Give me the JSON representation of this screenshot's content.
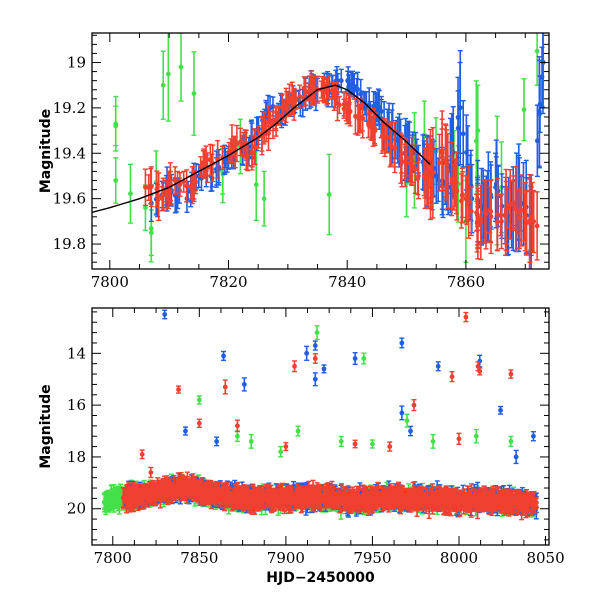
{
  "chart_data": [
    {
      "type": "scatter",
      "panel": "top",
      "xlabel": "",
      "ylabel": "Magnitude",
      "xlim": [
        7797,
        7874
      ],
      "ylim": [
        19.91,
        18.87
      ],
      "y_inverted": true,
      "xticks": [
        7800,
        7820,
        7840,
        7860
      ],
      "yticks": [
        19,
        19.2,
        19.4,
        19.6,
        19.8
      ],
      "ytick_labels": [
        "19",
        "19.2",
        "19.4",
        "19.6",
        "19.8"
      ],
      "error_bars": true,
      "colors": {
        "blue": "#1f5fe0",
        "green": "#44e04a",
        "red": "#f04030",
        "model": "#000000"
      },
      "model_curve": {
        "x": [
          7797,
          7800,
          7805,
          7810,
          7815,
          7820,
          7825,
          7828,
          7831,
          7835,
          7838,
          7840,
          7843,
          7846,
          7850,
          7854
        ],
        "y": [
          19.66,
          19.64,
          19.6,
          19.55,
          19.48,
          19.41,
          19.33,
          19.27,
          19.2,
          19.12,
          19.1,
          19.12,
          19.18,
          19.26,
          19.35,
          19.45
        ]
      },
      "series": [
        {
          "color": "blue",
          "points": [
            [
              7807,
              19.62,
              0.08
            ],
            [
              7810,
              19.55,
              0.07
            ],
            [
              7813,
              19.6,
              0.06
            ],
            [
              7815,
              19.5,
              0.05
            ],
            [
              7818,
              19.48,
              0.06
            ],
            [
              7820,
              19.42,
              0.05
            ],
            [
              7823,
              19.38,
              0.05
            ],
            [
              7825,
              19.3,
              0.06
            ],
            [
              7827,
              19.2,
              0.05
            ],
            [
              7829,
              19.22,
              0.05
            ],
            [
              7831,
              19.18,
              0.04
            ],
            [
              7833,
              19.15,
              0.06
            ],
            [
              7835,
              19.12,
              0.05
            ],
            [
              7837,
              19.1,
              0.05
            ],
            [
              7839,
              19.08,
              0.05
            ],
            [
              7841,
              19.1,
              0.05
            ],
            [
              7843,
              19.18,
              0.05
            ],
            [
              7845,
              19.2,
              0.06
            ],
            [
              7847,
              19.3,
              0.08
            ],
            [
              7849,
              19.35,
              0.1
            ],
            [
              7851,
              19.4,
              0.08
            ],
            [
              7853,
              19.45,
              0.09
            ],
            [
              7855,
              19.5,
              0.12
            ],
            [
              7857,
              19.55,
              0.12
            ],
            [
              7859,
              19.2,
              0.2
            ],
            [
              7861,
              19.6,
              0.15
            ],
            [
              7863,
              19.65,
              0.12
            ],
            [
              7865,
              19.55,
              0.15
            ],
            [
              7867,
              19.7,
              0.15
            ],
            [
              7869,
              19.6,
              0.18
            ],
            [
              7871,
              19.7,
              0.15
            ],
            [
              7873,
              19.0,
              0.2
            ]
          ]
        },
        {
          "color": "green",
          "points": [
            [
              7801,
              19.27,
              0.12
            ],
            [
              7801,
              19.52,
              0.1
            ],
            [
              7806,
              19.64,
              0.1
            ],
            [
              7807,
              19.75,
              0.1
            ],
            [
              7809,
              19.1,
              0.15
            ],
            [
              7812,
              19.02,
              0.15
            ],
            [
              7819,
              19.48,
              0.1
            ],
            [
              7822,
              19.37,
              0.12
            ],
            [
              7826,
              19.6,
              0.12
            ],
            [
              7850,
              19.53,
              0.15
            ],
            [
              7853,
              19.32,
              0.15
            ],
            [
              7858,
              19.45,
              0.15
            ],
            [
              7860,
              19.7,
              0.18
            ],
            [
              7862,
              19.3,
              0.2
            ],
            [
              7866,
              19.55,
              0.2
            ],
            [
              7872,
              18.95,
              0.15
            ]
          ]
        },
        {
          "color": "red",
          "points": [
            [
              7806,
              19.55,
              0.08
            ],
            [
              7809,
              19.58,
              0.07
            ],
            [
              7811,
              19.52,
              0.06
            ],
            [
              7814,
              19.55,
              0.05
            ],
            [
              7816,
              19.45,
              0.06
            ],
            [
              7819,
              19.42,
              0.05
            ],
            [
              7822,
              19.35,
              0.06
            ],
            [
              7824,
              19.4,
              0.06
            ],
            [
              7826,
              19.3,
              0.05
            ],
            [
              7828,
              19.25,
              0.05
            ],
            [
              7830,
              19.18,
              0.05
            ],
            [
              7832,
              19.15,
              0.05
            ],
            [
              7834,
              19.1,
              0.05
            ],
            [
              7836,
              19.12,
              0.05
            ],
            [
              7838,
              19.15,
              0.05
            ],
            [
              7840,
              19.22,
              0.05
            ],
            [
              7842,
              19.25,
              0.06
            ],
            [
              7844,
              19.28,
              0.06
            ],
            [
              7846,
              19.32,
              0.07
            ],
            [
              7848,
              19.38,
              0.08
            ],
            [
              7850,
              19.42,
              0.08
            ],
            [
              7852,
              19.5,
              0.1
            ],
            [
              7854,
              19.5,
              0.12
            ],
            [
              7856,
              19.4,
              0.15
            ],
            [
              7858,
              19.55,
              0.1
            ],
            [
              7860,
              19.6,
              0.1
            ],
            [
              7862,
              19.7,
              0.12
            ],
            [
              7864,
              19.65,
              0.1
            ],
            [
              7866,
              19.7,
              0.12
            ],
            [
              7868,
              19.62,
              0.12
            ],
            [
              7870,
              19.68,
              0.15
            ],
            [
              7872,
              19.72,
              0.15
            ]
          ]
        }
      ]
    },
    {
      "type": "scatter",
      "panel": "bottom",
      "xlabel": "HJD−2450000",
      "ylabel": "Magnitude",
      "xlim": [
        7788,
        8052
      ],
      "ylim": [
        21.4,
        12.25
      ],
      "y_inverted": true,
      "xticks": [
        7800,
        7850,
        7900,
        7950,
        8000,
        8050
      ],
      "yticks": [
        14,
        16,
        18,
        20
      ],
      "ytick_labels": [
        "14",
        "16",
        "18",
        "20"
      ],
      "error_bars": true,
      "colors": {
        "blue": "#1f5fe0",
        "green": "#44e04a",
        "red": "#f04030"
      },
      "outliers": [
        {
          "color": "blue",
          "points": [
            [
              7830,
              12.5
            ],
            [
              7864,
              14.1
            ],
            [
              7876,
              15.2
            ],
            [
              7842,
              17.0
            ],
            [
              7860,
              17.4
            ],
            [
              7912,
              14.0
            ],
            [
              7917,
              13.7
            ],
            [
              7917,
              15.0
            ],
            [
              7922,
              14.6
            ],
            [
              7940,
              14.2
            ],
            [
              7967,
              13.6
            ],
            [
              7967,
              16.3
            ],
            [
              7988,
              14.5
            ],
            [
              8012,
              14.3
            ],
            [
              8024,
              16.2
            ],
            [
              8043,
              17.2
            ],
            [
              8033,
              18.0
            ],
            [
              7972,
              17.0
            ]
          ]
        },
        {
          "color": "green",
          "points": [
            [
              7850,
              15.8
            ],
            [
              7918,
              13.2
            ],
            [
              7945,
              14.2
            ],
            [
              7872,
              17.2
            ],
            [
              7880,
              17.4
            ],
            [
              7897,
              17.8
            ],
            [
              7932,
              17.4
            ],
            [
              7950,
              17.5
            ],
            [
              7970,
              16.6
            ],
            [
              8010,
              17.2
            ],
            [
              8030,
              17.4
            ],
            [
              7907,
              17.0
            ],
            [
              7985,
              17.4
            ]
          ]
        },
        {
          "color": "red",
          "points": [
            [
              7838,
              15.4
            ],
            [
              7865,
              15.3
            ],
            [
              7850,
              16.7
            ],
            [
              7905,
              14.5
            ],
            [
              7917,
              14.2
            ],
            [
              7974,
              16.0
            ],
            [
              7996,
              14.9
            ],
            [
              8004,
              12.6
            ],
            [
              8011,
              14.5
            ],
            [
              8012,
              14.7
            ],
            [
              8030,
              14.8
            ],
            [
              7817,
              17.9
            ],
            [
              7822,
              18.6
            ],
            [
              7872,
              16.8
            ],
            [
              7900,
              17.6
            ],
            [
              7960,
              17.6
            ],
            [
              8000,
              17.3
            ],
            [
              7940,
              17.5
            ]
          ]
        }
      ],
      "bands": [
        {
          "color": "blue",
          "x": [
            7807,
            7820,
            7840,
            7860,
            7880,
            7900,
            7920,
            7940,
            7960,
            7980,
            8000,
            8020,
            8045
          ],
          "center": [
            19.6,
            19.5,
            19.2,
            19.4,
            19.6,
            19.5,
            19.6,
            19.7,
            19.5,
            19.6,
            19.7,
            19.6,
            19.9
          ]
        },
        {
          "color": "green",
          "x": [
            7795,
            7807,
            7820,
            7840,
            7860,
            7880,
            7900,
            7920,
            7940,
            7960,
            7980,
            8000,
            8020,
            8045
          ],
          "center": [
            19.7,
            19.6,
            19.5,
            19.2,
            19.5,
            19.7,
            19.6,
            19.6,
            19.8,
            19.6,
            19.6,
            19.7,
            19.7,
            19.8
          ]
        },
        {
          "color": "red",
          "x": [
            7806,
            7820,
            7840,
            7860,
            7880,
            7900,
            7920,
            7940,
            7960,
            7980,
            8000,
            8020,
            8045
          ],
          "center": [
            19.6,
            19.45,
            19.15,
            19.5,
            19.6,
            19.6,
            19.55,
            19.7,
            19.6,
            19.65,
            19.7,
            19.7,
            19.8
          ]
        }
      ]
    }
  ]
}
